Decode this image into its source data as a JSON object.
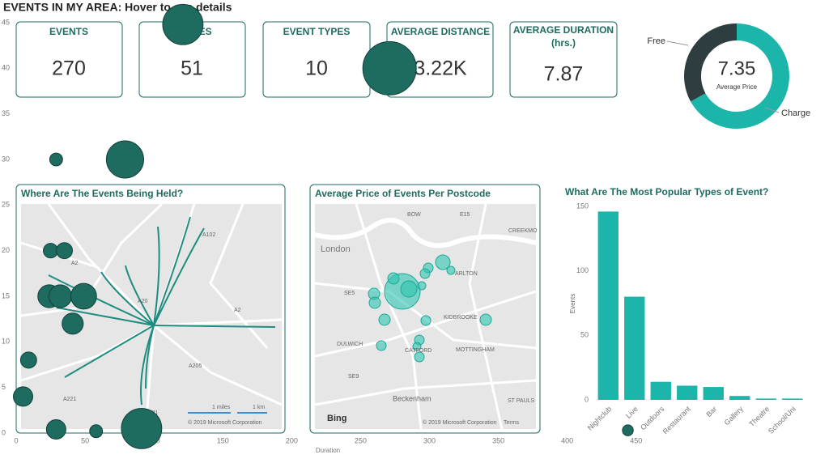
{
  "header": {
    "title": "EVENTS IN MY AREA: Hover to see details"
  },
  "kpis": [
    {
      "label": [
        "EVENTS"
      ],
      "value": "270"
    },
    {
      "label": [
        "VENUES"
      ],
      "value": "51"
    },
    {
      "label": [
        "EVENT TYPES"
      ],
      "value": "10"
    },
    {
      "label": [
        "AVERAGE DISTANCE"
      ],
      "value": "3.22K"
    },
    {
      "label": [
        "AVERAGE DURATION",
        "(hrs.)"
      ],
      "value": "7.87"
    }
  ],
  "maps": [
    {
      "title": "Where Are The Events Being Held?",
      "labels": [
        "A102",
        "A2",
        "A20",
        "A2",
        "A205",
        "A221",
        "A21",
        "1 miles",
        "1 km"
      ],
      "credit": "© 2019 Microsoft Corporation"
    },
    {
      "title": "Average Price of Events Per Postcode",
      "labels": [
        "BOW",
        "E15",
        "London",
        "CREEKMO",
        "ARLTON",
        "SE5",
        "KIDBROOKE",
        "DULWICH",
        "CATFORD",
        "MOTTINGHAM",
        "SE9",
        "Beckenham",
        "ST PAULS"
      ],
      "brand": "Bing",
      "credit": "© 2019 Microsoft Corporation",
      "terms": "Terms"
    }
  ],
  "chart_data": [
    {
      "type": "pie",
      "donut": true,
      "center_value": "7.35",
      "center_label": "Average Price",
      "categories": [
        "Free",
        "Charge"
      ],
      "values": [
        33,
        67
      ],
      "colors": [
        "#2e3d3f",
        "#1cb5a9"
      ]
    },
    {
      "type": "bar",
      "title": "What Are The Most Popular Types of Event?",
      "y_label": "Events",
      "categories": [
        "Nightclub",
        "Live",
        "Outdoors",
        "Restaurant",
        "Bar",
        "Gallery",
        "Theatre",
        "School/Uni"
      ],
      "values": [
        146,
        80,
        14,
        11,
        10,
        3,
        1,
        1
      ],
      "color": "#1cb5a9",
      "ylim": [
        0,
        150
      ],
      "yticks": [
        0,
        50,
        100,
        150
      ]
    },
    {
      "type": "scatter",
      "x_label": "Duration",
      "x": [
        121,
        271,
        29,
        79,
        25,
        35,
        24,
        32,
        49,
        41,
        9,
        5,
        91,
        29,
        58,
        444
      ],
      "y": [
        44.8,
        40,
        30,
        30,
        20,
        20,
        15,
        15,
        15,
        12,
        8,
        4,
        0.5,
        0.4,
        0.2,
        0.3
      ],
      "sizes": [
        69,
        121,
        7,
        59,
        9,
        11,
        22,
        22,
        28,
        19,
        11,
        16,
        69,
        16,
        7,
        5
      ],
      "color": "#1e6b60",
      "xlim": [
        0,
        590
      ],
      "ylim": [
        0,
        45
      ],
      "xticks": [
        0,
        50,
        100,
        150,
        200,
        250,
        300,
        350,
        400,
        450
      ],
      "yticks": [
        0,
        5,
        10,
        15,
        20,
        25,
        30,
        35,
        40,
        45
      ]
    }
  ]
}
